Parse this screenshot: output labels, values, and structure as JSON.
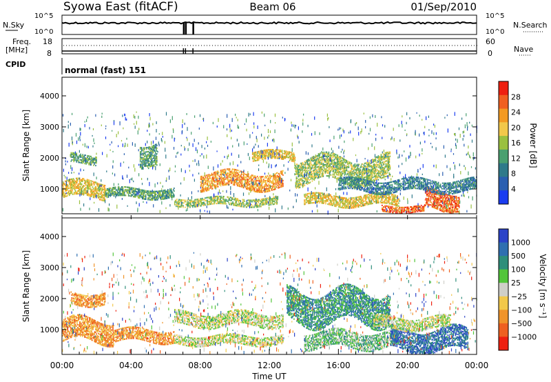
{
  "header": {
    "title_left": "Syowa East (fitACF)",
    "title_center": "Beam 06",
    "title_right": "01/Sep/2010"
  },
  "top_panels": {
    "nsky_label": "N.Sky",
    "nsky_ticks": [
      "10^5",
      "10^0"
    ],
    "nsearch_label": "N.Search",
    "nsearch_ticks": [
      "10^5",
      "10^0"
    ],
    "freq_label_1": "Freq.",
    "freq_label_2": "[MHz]",
    "freq_ticks": [
      "18",
      "8"
    ],
    "nave_label": "Nave",
    "nave_ticks": [
      "60",
      "0"
    ],
    "cpid_label": "CPID",
    "cpid_value": "normal (fast) 151",
    "noise_gap_hours": [
      7.0,
      7.55
    ]
  },
  "chart_data": [
    {
      "type": "heatmap",
      "name": "power",
      "ylabel": "Slant Range [km]",
      "yticks": [
        "1000",
        "2000",
        "3000",
        "4000"
      ],
      "ylim": [
        200,
        4600
      ],
      "xlim": [
        0,
        24
      ],
      "colorbar_label": "Power [dB]",
      "colorbar_ticks": [
        "4",
        "8",
        "12",
        "16",
        "20",
        "24",
        "28"
      ],
      "colorbar_range": [
        0,
        30
      ],
      "colors": [
        "#1a3cf0",
        "#2a5fb0",
        "#2f7a8a",
        "#4aa070",
        "#9ac040",
        "#f2c84a",
        "#f39a22",
        "#f06020",
        "#ee2010"
      ],
      "echo_bands": [
        {
          "t0": 0,
          "t1": 2.5,
          "r0": 700,
          "r1": 1200,
          "level": 20
        },
        {
          "t0": 0.5,
          "t1": 2.0,
          "r0": 1800,
          "r1": 2100,
          "level": 10
        },
        {
          "t0": 2.5,
          "t1": 6.5,
          "r0": 700,
          "r1": 1000,
          "level": 12
        },
        {
          "t0": 4.5,
          "t1": 5.5,
          "r0": 1800,
          "r1": 2500,
          "level": 10
        },
        {
          "t0": 8.0,
          "t1": 12.8,
          "r0": 1000,
          "r1": 1500,
          "level": 22
        },
        {
          "t0": 6.5,
          "t1": 12.5,
          "r0": 450,
          "r1": 700,
          "level": 14
        },
        {
          "t0": 11.0,
          "t1": 13.5,
          "r0": 1900,
          "r1": 2200,
          "level": 18
        },
        {
          "t0": 13.5,
          "t1": 19.0,
          "r0": 1200,
          "r1": 2000,
          "level": 14
        },
        {
          "t0": 14.0,
          "t1": 19.5,
          "r0": 450,
          "r1": 800,
          "level": 18
        },
        {
          "t0": 18.5,
          "t1": 21.0,
          "r0": 250,
          "r1": 450,
          "level": 26
        },
        {
          "t0": 21.0,
          "t1": 23.0,
          "r0": 300,
          "r1": 900,
          "level": 26
        },
        {
          "t0": 16.0,
          "t1": 24.0,
          "r0": 900,
          "r1": 1300,
          "level": 8
        }
      ]
    },
    {
      "type": "heatmap",
      "name": "velocity",
      "ylabel": "Slant Range [km]",
      "yticks": [
        "1000",
        "2000",
        "3000",
        "4000"
      ],
      "ylim": [
        200,
        4600
      ],
      "xlim": [
        0,
        24
      ],
      "xticks": [
        "00:00",
        "04:00",
        "08:00",
        "12:00",
        "16:00",
        "20:00",
        "00:00"
      ],
      "xlabel": "Time UT",
      "colorbar_label": "Velocity [m s⁻¹]",
      "colorbar_ticks": [
        "1000",
        "500",
        "100",
        "25",
        "−25",
        "−100",
        "−500",
        "−1000"
      ],
      "colors": [
        "#2b43c8",
        "#2f6fb0",
        "#2e8e7a",
        "#52c53a",
        "#cfcfc8",
        "#f2c84a",
        "#f0942a",
        "#ee6020",
        "#ee2010"
      ],
      "echo_bands": [
        {
          "t0": 0,
          "t1": 3.0,
          "r0": 600,
          "r1": 1300,
          "color": 6
        },
        {
          "t0": 3.0,
          "t1": 6.5,
          "r0": 600,
          "r1": 1000,
          "color": 6
        },
        {
          "t0": 0.5,
          "t1": 2.5,
          "r0": 1800,
          "r1": 2200,
          "color": 6
        },
        {
          "t0": 6.5,
          "t1": 12.8,
          "r0": 1100,
          "r1": 1550,
          "color": 4
        },
        {
          "t0": 6.5,
          "t1": 12.8,
          "r0": 500,
          "r1": 800,
          "color": 4
        },
        {
          "t0": 13.0,
          "t1": 19.0,
          "r0": 1200,
          "r1": 2200,
          "color": 2
        },
        {
          "t0": 14.0,
          "t1": 19.5,
          "r0": 400,
          "r1": 900,
          "color": 3
        },
        {
          "t0": 19.0,
          "t1": 23.5,
          "r0": 300,
          "r1": 1000,
          "color": 1
        },
        {
          "t0": 18.0,
          "t1": 22.5,
          "r0": 1000,
          "r1": 1400,
          "color": 4
        }
      ]
    }
  ],
  "colors": {
    "axis": "#000000",
    "background": "#ffffff"
  }
}
